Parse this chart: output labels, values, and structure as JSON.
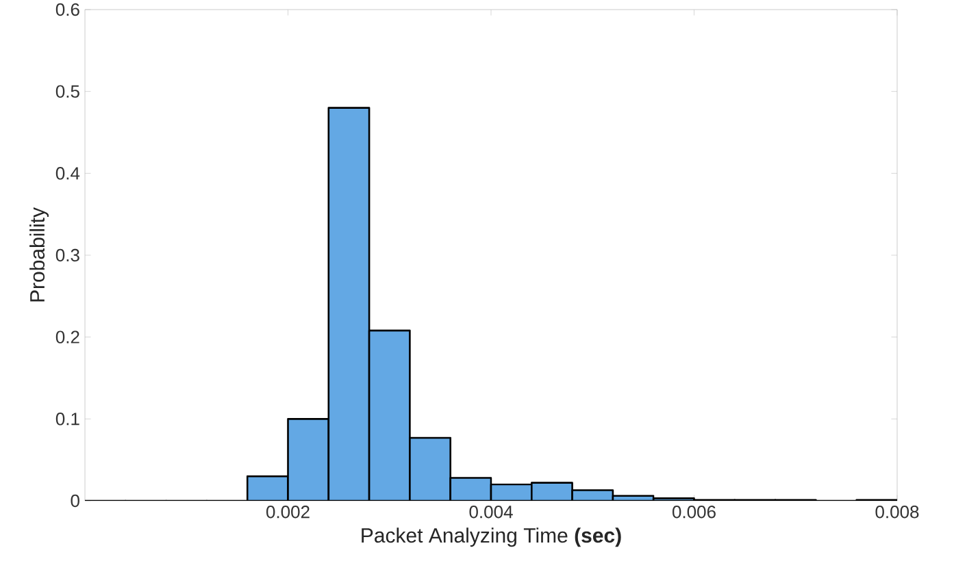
{
  "chart_data": {
    "type": "histogram",
    "xlabel": "Packet Analyzing Time **(sec)**",
    "ylabel": "Probability",
    "bins": [
      0,
      0.0004,
      0.0008,
      0.0012,
      0.0016,
      0.002,
      0.0024,
      0.0028,
      0.0032,
      0.0036,
      0.004,
      0.0044,
      0.0048,
      0.0052,
      0.0056,
      0.006,
      0.0064,
      0.0068,
      0.0072,
      0.0076,
      0.008
    ],
    "values": [
      0,
      0,
      0,
      0,
      0.03,
      0.1,
      0.48,
      0.208,
      0.077,
      0.028,
      0.02,
      0.022,
      0.013,
      0.006,
      0.003,
      0.001,
      0.001,
      0.001,
      0,
      0.001
    ],
    "color": "#63a8e4",
    "xlim": [
      0,
      0.008
    ],
    "ylim": [
      0,
      0.6
    ],
    "xticks": [
      0.002,
      0.004,
      0.006,
      0.008
    ],
    "yticks": [
      0,
      0.1,
      0.2,
      0.3,
      0.4,
      0.5,
      0.6
    ],
    "grid": false
  }
}
